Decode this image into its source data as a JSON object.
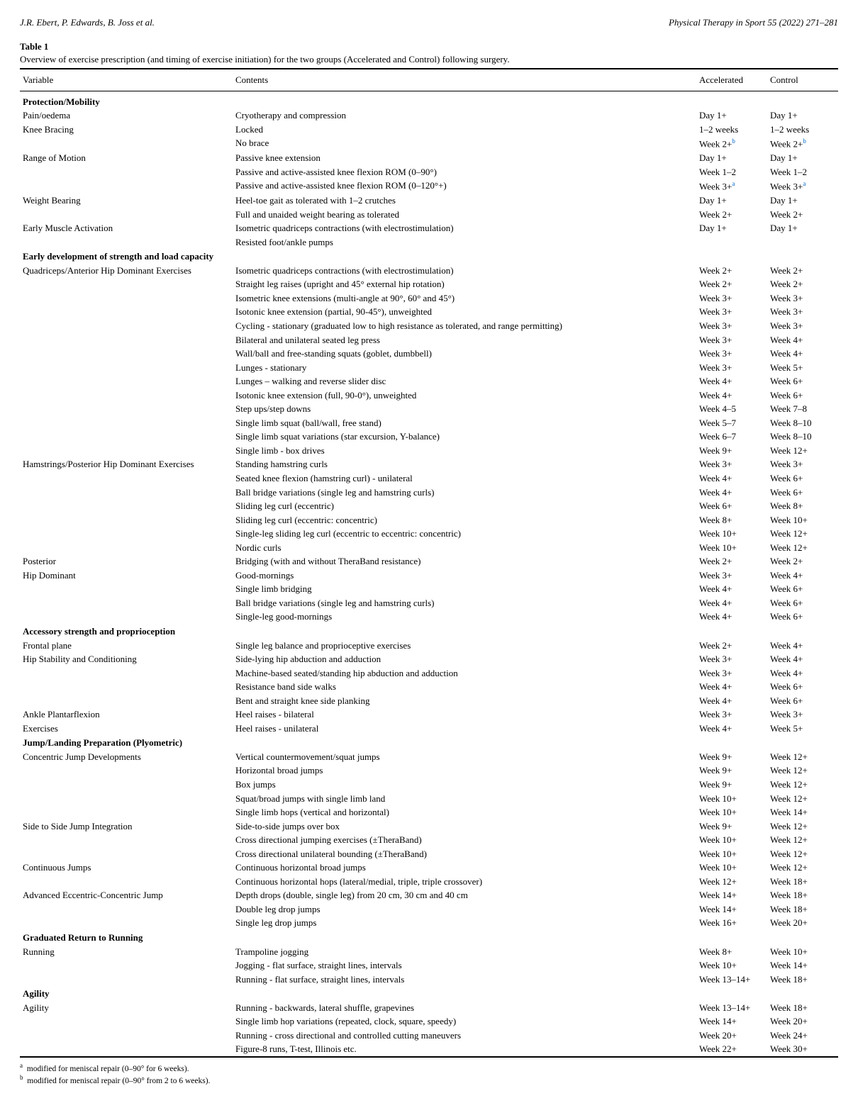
{
  "header": {
    "left": "J.R. Ebert, P. Edwards, B. Joss et al.",
    "right": "Physical Therapy in Sport 55 (2022) 271–281"
  },
  "table": {
    "label": "Table 1",
    "caption": "Overview of exercise prescription (and timing of exercise initiation) for the two groups (Accelerated and Control) following surgery.",
    "columns": [
      "Variable",
      "Contents",
      "Accelerated",
      "Control"
    ],
    "sections": [
      {
        "title": "Protection/Mobility",
        "rows": [
          {
            "v": "Pain/oedema",
            "c": "Cryotherapy and compression",
            "a": "Day 1+",
            "ct": "Day 1+"
          },
          {
            "v": "Knee Bracing",
            "c": "Locked",
            "a": "1–2 weeks",
            "ct": "1–2 weeks"
          },
          {
            "v": "",
            "c": "No brace",
            "a": "Week 2+",
            "ct": "Week 2+",
            "supA": "b",
            "supC": "b"
          },
          {
            "v": "Range of Motion",
            "c": "Passive knee extension",
            "a": "Day 1+",
            "ct": "Day 1+"
          },
          {
            "v": "",
            "c": "Passive and active-assisted knee flexion ROM (0–90°)",
            "a": "Week 1–2",
            "ct": "Week 1–2"
          },
          {
            "v": "",
            "c": "Passive and active-assisted knee flexion ROM (0–120°+)",
            "a": "Week 3+",
            "ct": "Week 3+",
            "supA": "a",
            "supC": "a"
          },
          {
            "v": "Weight Bearing",
            "c": "Heel-toe gait as tolerated with 1–2 crutches",
            "a": "Day 1+",
            "ct": "Day 1+"
          },
          {
            "v": "",
            "c": "Full and unaided weight bearing as tolerated",
            "a": "Week 2+",
            "ct": "Week 2+"
          },
          {
            "v": "Early Muscle Activation",
            "c": "Isometric quadriceps contractions (with electrostimulation)",
            "a": "Day 1+",
            "ct": "Day 1+"
          },
          {
            "v": "",
            "c": "Resisted foot/ankle pumps",
            "a": "",
            "ct": ""
          }
        ]
      },
      {
        "title": "Early development of strength and load capacity",
        "rows": [
          {
            "v": "Quadriceps/Anterior Hip Dominant Exercises",
            "c": "Isometric quadriceps contractions (with electrostimulation)",
            "a": "Week 2+",
            "ct": "Week 2+"
          },
          {
            "v": "",
            "c": "Straight leg raises (upright and 45° external hip rotation)",
            "a": "Week 2+",
            "ct": "Week 2+"
          },
          {
            "v": "",
            "c": "Isometric knee extensions (multi-angle at 90°, 60° and 45°)",
            "a": "Week 3+",
            "ct": "Week 3+"
          },
          {
            "v": "",
            "c": "Isotonic knee extension (partial, 90-45°), unweighted",
            "a": "Week 3+",
            "ct": "Week 3+"
          },
          {
            "v": "",
            "c": "Cycling - stationary (graduated low to high resistance as tolerated, and range permitting)",
            "a": "Week 3+",
            "ct": "Week 3+"
          },
          {
            "v": "",
            "c": "Bilateral and unilateral seated leg press",
            "a": "Week 3+",
            "ct": "Week 4+"
          },
          {
            "v": "",
            "c": "Wall/ball and free-standing squats (goblet, dumbbell)",
            "a": "Week 3+",
            "ct": "Week 4+"
          },
          {
            "v": "",
            "c": "Lunges - stationary",
            "a": "Week 3+",
            "ct": "Week 5+"
          },
          {
            "v": "",
            "c": "Lunges – walking and reverse slider disc",
            "a": "Week 4+",
            "ct": "Week 6+"
          },
          {
            "v": "",
            "c": "Isotonic knee extension (full, 90-0°), unweighted",
            "a": "Week 4+",
            "ct": "Week 6+"
          },
          {
            "v": "",
            "c": "Step ups/step downs",
            "a": "Week 4–5",
            "ct": "Week 7–8"
          },
          {
            "v": "",
            "c": "Single limb squat (ball/wall, free stand)",
            "a": "Week 5–7",
            "ct": "Week 8–10"
          },
          {
            "v": "",
            "c": "Single limb squat variations (star excursion, Y-balance)",
            "a": "Week 6–7",
            "ct": "Week 8–10"
          },
          {
            "v": "",
            "c": "Single limb - box drives",
            "a": "Week 9+",
            "ct": "Week 12+"
          },
          {
            "v": "Hamstrings/Posterior Hip Dominant Exercises",
            "c": "Standing hamstring curls",
            "a": "Week 3+",
            "ct": "Week 3+"
          },
          {
            "v": "",
            "c": "Seated knee flexion (hamstring curl) - unilateral",
            "a": "Week 4+",
            "ct": "Week 6+"
          },
          {
            "v": "",
            "c": "Ball bridge variations (single leg and hamstring curls)",
            "a": "Week 4+",
            "ct": "Week 6+"
          },
          {
            "v": "",
            "c": "Sliding leg curl (eccentric)",
            "a": "Week 6+",
            "ct": "Week 8+"
          },
          {
            "v": "",
            "c": "Sliding leg curl (eccentric: concentric)",
            "a": "Week 8+",
            "ct": "Week 10+"
          },
          {
            "v": "",
            "c": "Single-leg sliding leg curl (eccentric to eccentric: concentric)",
            "a": "Week 10+",
            "ct": "Week 12+"
          },
          {
            "v": "",
            "c": "Nordic curls",
            "a": "Week 10+",
            "ct": "Week 12+"
          },
          {
            "v": "Posterior",
            "c": "Bridging (with and without TheraBand resistance)",
            "a": "Week 2+",
            "ct": "Week 2+"
          },
          {
            "v": "Hip Dominant",
            "c": "Good-mornings",
            "a": "Week 3+",
            "ct": "Week 4+"
          },
          {
            "v": "",
            "c": "Single limb bridging",
            "a": "Week 4+",
            "ct": "Week 6+"
          },
          {
            "v": "",
            "c": "Ball bridge variations (single leg and hamstring curls)",
            "a": "Week 4+",
            "ct": "Week 6+"
          },
          {
            "v": "",
            "c": "Single-leg good-mornings",
            "a": "Week 4+",
            "ct": "Week 6+"
          }
        ]
      },
      {
        "title": "Accessory strength and proprioception",
        "rows": [
          {
            "v": "Frontal plane",
            "c": "Single leg balance and proprioceptive exercises",
            "a": "Week 2+",
            "ct": "Week 4+"
          },
          {
            "v": "Hip Stability and Conditioning",
            "c": "Side-lying hip abduction and adduction",
            "a": "Week 3+",
            "ct": "Week 4+"
          },
          {
            "v": "",
            "c": "Machine-based seated/standing hip abduction and adduction",
            "a": "Week 3+",
            "ct": "Week 4+"
          },
          {
            "v": "",
            "c": "Resistance band side walks",
            "a": "Week 4+",
            "ct": "Week 6+"
          },
          {
            "v": "",
            "c": "Bent and straight knee side planking",
            "a": "Week 4+",
            "ct": "Week 6+"
          },
          {
            "v": "Ankle Plantarflexion",
            "c": "Heel raises - bilateral",
            "a": "Week 3+",
            "ct": "Week 3+"
          },
          {
            "v": "Exercises",
            "c": "Heel raises - unilateral",
            "a": "Week 4+",
            "ct": "Week 5+"
          }
        ]
      },
      {
        "title": "Jump/Landing Preparation (Plyometric)",
        "rows": [
          {
            "v": "Concentric Jump Developments",
            "c": "Vertical countermovement/squat jumps",
            "a": "Week 9+",
            "ct": "Week 12+"
          },
          {
            "v": "",
            "c": "Horizontal broad jumps",
            "a": "Week 9+",
            "ct": "Week 12+"
          },
          {
            "v": "",
            "c": "Box jumps",
            "a": "Week 9+",
            "ct": "Week 12+"
          },
          {
            "v": "",
            "c": "Squat/broad jumps with single limb land",
            "a": "Week 10+",
            "ct": "Week 12+"
          },
          {
            "v": "",
            "c": "Single limb hops (vertical and horizontal)",
            "a": "Week 10+",
            "ct": "Week 14+"
          },
          {
            "v": "Side to Side Jump Integration",
            "c": "Side-to-side jumps over box",
            "a": "Week 9+",
            "ct": "Week 12+"
          },
          {
            "v": "",
            "c": "Cross directional jumping exercises (±TheraBand)",
            "a": "Week 10+",
            "ct": "Week 12+"
          },
          {
            "v": "",
            "c": "Cross directional unilateral bounding (±TheraBand)",
            "a": "Week 10+",
            "ct": "Week 12+"
          },
          {
            "v": "Continuous Jumps",
            "c": "Continuous horizontal broad jumps",
            "a": "Week 10+",
            "ct": "Week 12+"
          },
          {
            "v": "",
            "c": "Continuous horizontal hops (lateral/medial, triple, triple crossover)",
            "a": "Week 12+",
            "ct": "Week 18+"
          },
          {
            "v": "Advanced Eccentric-Concentric Jump",
            "c": "Depth drops (double, single leg) from 20 cm, 30 cm and 40 cm",
            "a": "Week 14+",
            "ct": "Week 18+"
          },
          {
            "v": "",
            "c": "Double leg drop jumps",
            "a": "Week 14+",
            "ct": "Week 18+"
          },
          {
            "v": "",
            "c": "Single leg drop jumps",
            "a": "Week 16+",
            "ct": "Week 20+"
          }
        ]
      },
      {
        "title": "Graduated Return to Running",
        "rows": [
          {
            "v": "Running",
            "c": "Trampoline jogging",
            "a": "Week 8+",
            "ct": "Week 10+"
          },
          {
            "v": "",
            "c": "Jogging - flat surface, straight lines, intervals",
            "a": "Week 10+",
            "ct": "Week 14+"
          },
          {
            "v": "",
            "c": "Running - flat surface, straight lines, intervals",
            "a": "Week 13–14+",
            "ct": "Week 18+"
          }
        ]
      },
      {
        "title": "Agility",
        "rows": [
          {
            "v": "Agility",
            "c": "Running - backwards, lateral shuffle, grapevines",
            "a": "Week 13–14+",
            "ct": "Week 18+"
          },
          {
            "v": "",
            "c": "Single limb hop variations (repeated, clock, square, speedy)",
            "a": "Week 14+",
            "ct": "Week 20+"
          },
          {
            "v": "",
            "c": "Running - cross directional and controlled cutting maneuvers",
            "a": "Week 20+",
            "ct": "Week 24+"
          },
          {
            "v": "",
            "c": "Figure-8 runs, T-test, Illinois etc.",
            "a": "Week 22+",
            "ct": "Week 30+"
          }
        ]
      }
    ]
  },
  "footnotes": {
    "a": "modified for meniscal repair (0–90° for 6 weeks).",
    "b": "modified for meniscal repair (0–90° from 2 to 6 weeks)."
  }
}
